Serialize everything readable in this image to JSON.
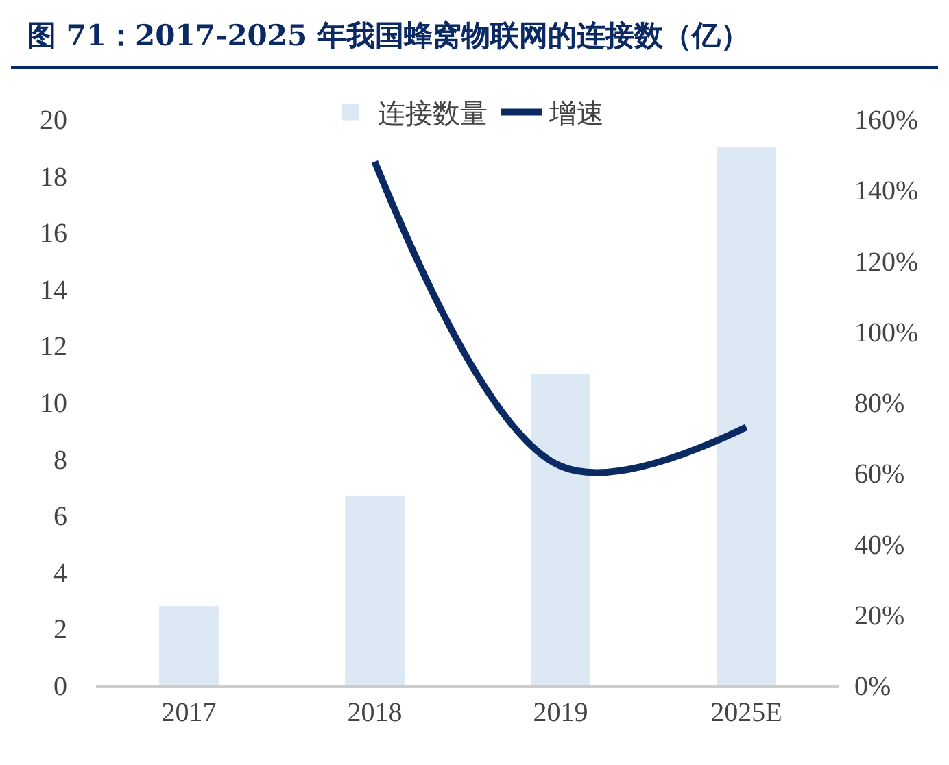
{
  "chart_data": {
    "type": "bar",
    "title": "图 71：2017-2025 年我国蜂窝物联网的连接数（亿）",
    "categories": [
      "2017",
      "2018",
      "2019",
      "2025E"
    ],
    "series": [
      {
        "name": "连接数量",
        "color": "#dde8f5",
        "values": [
          2.8,
          6.7,
          11,
          19
        ]
      },
      {
        "name": "增速",
        "type": "line",
        "axis": "y2",
        "color": "#0b2a63",
        "values": [
          null,
          148,
          62,
          73
        ]
      }
    ],
    "ylim": [
      0,
      20
    ],
    "yticks": [
      0,
      2,
      4,
      6,
      8,
      10,
      12,
      14,
      16,
      18,
      20
    ],
    "y2lim": [
      0,
      160
    ],
    "y2ticks": [
      {
        "value": 0,
        "label": "0%"
      },
      {
        "value": 20,
        "label": "20%"
      },
      {
        "value": 40,
        "label": "40%"
      },
      {
        "value": 60,
        "label": "60%"
      },
      {
        "value": 80,
        "label": "80%"
      },
      {
        "value": 100,
        "label": "100%"
      },
      {
        "value": 120,
        "label": "120%"
      },
      {
        "value": 140,
        "label": "140%"
      },
      {
        "value": 160,
        "label": "160%"
      }
    ],
    "legend": "top",
    "grid": false
  }
}
